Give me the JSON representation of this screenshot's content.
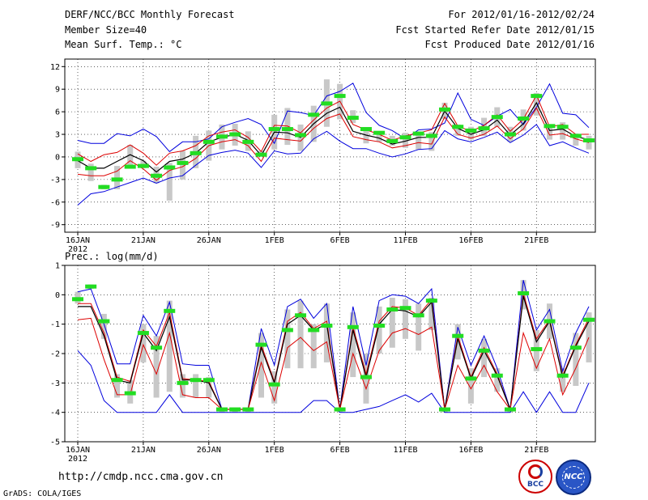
{
  "header": {
    "title": "DERF/NCC/BCC Monthly Forecast",
    "member_size": "Member Size=40",
    "variable": "Mean Surf. Temp.: °C",
    "period": "For 2012/01/16-2012/02/24",
    "started": "Fcst Started Refer Date 2012/01/15",
    "produced": "Fcst Produced Date 2012/01/16"
  },
  "footer": {
    "url": "http://cmdp.ncc.cma.gov.cn",
    "credit": "GrADS: COLA/IGES",
    "logo_left_text": "BCC",
    "logo_right_text": "NCC"
  },
  "colors": {
    "spread": "#0000dd",
    "quantile": "#dd0000",
    "mean": "#000000",
    "box": "#c8c8c8",
    "median": "#22dd22"
  },
  "chart_data": [
    {
      "type": "line",
      "title": "Mean Surf. Temp.: °C",
      "x_tick_labels": [
        "16JAN",
        "21JAN",
        "26JAN",
        "1FEB",
        "6FEB",
        "11FEB",
        "16FEB",
        "21FEB"
      ],
      "x_tick_days": [
        0,
        5,
        10,
        15,
        20,
        25,
        30,
        35
      ],
      "year_label": "2012",
      "ylim": [
        -10,
        13
      ],
      "yticks": [
        -9,
        -6,
        -3,
        0,
        3,
        6,
        9,
        12
      ],
      "ytick_labels": [
        "-9",
        "-6",
        "-3",
        "0",
        "3",
        "6",
        "9",
        "12"
      ],
      "series": [
        {
          "name": "max",
          "values": [
            2.2,
            1.8,
            1.8,
            3.1,
            2.8,
            3.7,
            2.7,
            0.7,
            2.0,
            2.0,
            2.4,
            4.0,
            4.6,
            5.1,
            4.3,
            1.8,
            6.1,
            5.9,
            5.5,
            8.1,
            8.7,
            9.8,
            5.9,
            4.2,
            3.5,
            2.4,
            3.6,
            3.7,
            4.5,
            8.5,
            5.0,
            4.2,
            5.4,
            6.3,
            4.3,
            6.6,
            9.7,
            5.8,
            5.6,
            3.9
          ]
        },
        {
          "name": "upper",
          "values": [
            0.4,
            -0.6,
            0.3,
            0.6,
            1.6,
            0.5,
            -1.1,
            0.5,
            0.8,
            1.5,
            2.8,
            3.3,
            3.6,
            2.6,
            0.7,
            4.2,
            4.1,
            3.2,
            4.9,
            6.5,
            7.4,
            4.3,
            3.6,
            3.0,
            2.2,
            2.8,
            3.2,
            3.6,
            7.1,
            4.1,
            3.4,
            4.2,
            5.6,
            3.4,
            5.0,
            8.2,
            4.0,
            4.3,
            3.0,
            3.0
          ]
        },
        {
          "name": "mean",
          "values": [
            -0.5,
            -1.5,
            -1.5,
            -0.6,
            0.3,
            -0.5,
            -2.0,
            -0.6,
            -0.3,
            0.5,
            2.0,
            2.6,
            3.0,
            2.2,
            0.2,
            3.3,
            3.2,
            2.6,
            4.4,
            5.8,
            6.6,
            3.4,
            2.9,
            2.5,
            1.7,
            2.1,
            2.6,
            2.6,
            6.1,
            3.8,
            3.0,
            3.6,
            4.9,
            2.9,
            4.4,
            7.2,
            3.5,
            3.7,
            2.7,
            2.3
          ]
        },
        {
          "name": "lower",
          "values": [
            -2.3,
            -2.5,
            -2.5,
            -1.9,
            -0.5,
            -1.6,
            -3.1,
            -1.8,
            -1.3,
            -0.2,
            1.5,
            2.0,
            2.3,
            1.5,
            -0.6,
            2.5,
            2.3,
            2.1,
            3.8,
            5.1,
            5.7,
            2.7,
            2.3,
            2.0,
            1.2,
            1.5,
            1.9,
            1.7,
            5.3,
            3.0,
            2.5,
            3.0,
            4.1,
            2.4,
            3.7,
            6.5,
            2.9,
            3.1,
            2.4,
            1.9
          ]
        },
        {
          "name": "min",
          "values": [
            -6.4,
            -4.9,
            -4.6,
            -4.0,
            -3.4,
            -2.8,
            -3.5,
            -2.8,
            -2.5,
            -1.1,
            0.2,
            0.6,
            0.9,
            0.5,
            -1.4,
            0.8,
            0.4,
            0.5,
            2.4,
            3.4,
            2.1,
            1.1,
            1.1,
            0.5,
            0.0,
            0.4,
            1.0,
            1.1,
            3.5,
            2.4,
            2.0,
            2.6,
            3.3,
            1.9,
            2.9,
            4.3,
            1.5,
            2.0,
            1.2,
            0.5
          ]
        }
      ],
      "box_low": [
        -1.5,
        -3.2,
        -4.3,
        -4.3,
        -1.5,
        -1.5,
        -3.5,
        -5.8,
        -3.0,
        -1.5,
        -0.5,
        1.0,
        1.5,
        0.8,
        0.2,
        1.0,
        1.6,
        0.8,
        2.0,
        4.0,
        5.0,
        4.5,
        1.8,
        2.0,
        1.5,
        1.2,
        1.0,
        0.8,
        5.0,
        2.8,
        2.3,
        2.8,
        4.0,
        2.0,
        3.5,
        5.5,
        2.3,
        2.3,
        1.5,
        1.0
      ],
      "box_high": [
        0.7,
        -0.9,
        -3.7,
        -1.2,
        1.6,
        -0.5,
        -1.3,
        -0.8,
        0.8,
        2.8,
        3.5,
        4.3,
        4.4,
        3.4,
        0.8,
        5.6,
        6.5,
        4.3,
        6.8,
        10.3,
        9.7,
        6.2,
        3.6,
        3.3,
        2.8,
        3.2,
        3.4,
        3.3,
        7.2,
        4.3,
        4.0,
        5.2,
        6.6,
        4.0,
        6.3,
        8.5,
        4.3,
        4.6,
        3.1,
        2.8
      ],
      "median": [
        -0.3,
        -1.5,
        -4.0,
        -3.0,
        -1.3,
        -1.2,
        -2.5,
        -1.4,
        -0.8,
        0.5,
        2.0,
        2.7,
        3.0,
        2.0,
        0.3,
        3.7,
        3.7,
        2.9,
        5.6,
        7.1,
        8.1,
        5.2,
        3.7,
        3.2,
        2.1,
        2.6,
        3.1,
        2.8,
        6.3,
        4.0,
        3.5,
        3.8,
        5.3,
        3.0,
        5.1,
        8.1,
        4.1,
        4.0,
        2.8,
        2.2
      ]
    },
    {
      "type": "line",
      "title": "Prec.: log(mm/d)",
      "x_tick_labels": [
        "16JAN",
        "21JAN",
        "26JAN",
        "1FEB",
        "6FEB",
        "11FEB",
        "16FEB",
        "21FEB"
      ],
      "x_tick_days": [
        0,
        5,
        10,
        15,
        20,
        25,
        30,
        35
      ],
      "year_label": "2012",
      "ylim": [
        -5,
        1
      ],
      "yticks": [
        -5,
        -4,
        -3,
        -2,
        -1,
        0,
        1
      ],
      "ytick_labels": [
        "-5",
        "-4",
        "-3",
        "-2",
        "-1",
        "0",
        "1"
      ],
      "series": [
        {
          "name": "max",
          "values": [
            0.1,
            0.2,
            -1.0,
            -2.35,
            -2.35,
            -0.7,
            -1.4,
            -0.25,
            -2.35,
            -2.4,
            -2.4,
            -3.9,
            -3.9,
            -3.9,
            -1.15,
            -2.4,
            -0.4,
            -0.15,
            -0.8,
            -0.3,
            -3.9,
            -0.4,
            -2.4,
            -0.2,
            0.0,
            -0.05,
            -0.3,
            0.2,
            -3.9,
            -1.1,
            -2.4,
            -1.4,
            -2.5,
            -3.9,
            0.5,
            -1.2,
            -0.5,
            -2.6,
            -1.3,
            -0.4
          ]
        },
        {
          "name": "upper",
          "values": [
            -0.3,
            -0.3,
            -1.3,
            -2.8,
            -2.95,
            -1.2,
            -1.75,
            -0.6,
            -2.85,
            -2.9,
            -2.95,
            -3.9,
            -3.9,
            -3.9,
            -1.7,
            -2.95,
            -0.9,
            -0.6,
            -1.15,
            -0.9,
            -3.9,
            -1.1,
            -2.7,
            -0.9,
            -0.4,
            -0.45,
            -0.7,
            -0.15,
            -3.9,
            -1.4,
            -2.8,
            -1.8,
            -2.7,
            -3.9,
            0.05,
            -1.5,
            -0.85,
            -2.75,
            -1.7,
            -0.8
          ]
        },
        {
          "name": "mean",
          "values": [
            -0.4,
            -0.4,
            -1.4,
            -2.9,
            -3.0,
            -1.3,
            -1.9,
            -0.75,
            -2.9,
            -2.9,
            -3.0,
            -3.9,
            -3.9,
            -3.9,
            -1.8,
            -3.0,
            -1.0,
            -0.7,
            -1.2,
            -1.0,
            -3.9,
            -1.2,
            -2.8,
            -1.0,
            -0.5,
            -0.55,
            -0.75,
            -0.25,
            -3.9,
            -1.5,
            -2.85,
            -1.9,
            -2.75,
            -3.9,
            -0.05,
            -1.6,
            -0.9,
            -2.8,
            -1.75,
            -0.9
          ]
        },
        {
          "name": "lower",
          "values": [
            -0.85,
            -0.8,
            -2.2,
            -3.4,
            -3.4,
            -1.7,
            -2.7,
            -1.3,
            -3.4,
            -3.5,
            -3.5,
            -3.9,
            -3.9,
            -3.9,
            -2.3,
            -3.6,
            -1.8,
            -1.45,
            -1.9,
            -1.6,
            -3.9,
            -2.0,
            -3.2,
            -1.9,
            -1.3,
            -1.15,
            -1.35,
            -1.1,
            -3.9,
            -2.4,
            -3.2,
            -2.4,
            -3.3,
            -3.9,
            -1.3,
            -2.5,
            -1.5,
            -3.4,
            -2.5,
            -1.45
          ]
        },
        {
          "name": "min",
          "values": [
            -1.9,
            -2.4,
            -3.6,
            -4.0,
            -4.0,
            -4.0,
            -4.0,
            -3.4,
            -4.0,
            -4.0,
            -4.0,
            -4.0,
            -4.0,
            -4.0,
            -4.0,
            -4.0,
            -4.0,
            -4.0,
            -3.6,
            -3.6,
            -4.0,
            -4.0,
            -3.9,
            -3.8,
            -3.6,
            -3.4,
            -3.65,
            -3.35,
            -4.0,
            -4.0,
            -4.0,
            -4.0,
            -4.0,
            -4.0,
            -3.3,
            -4.0,
            -3.3,
            -4.0,
            -4.0,
            -3.0
          ]
        }
      ],
      "box_low": [
        -0.3,
        0.2,
        -1.5,
        -3.5,
        -3.7,
        -2.3,
        -3.5,
        -3.3,
        -3.5,
        -3.5,
        -3.5,
        -4.0,
        -4.0,
        -4.0,
        -3.5,
        -3.7,
        -2.5,
        -2.5,
        -2.5,
        -2.3,
        -4.0,
        -2.8,
        -3.7,
        -2.0,
        -1.8,
        -1.5,
        -1.9,
        -1.2,
        -4.0,
        -2.2,
        -3.7,
        -2.8,
        -3.3,
        -4.0,
        -0.5,
        -2.6,
        -1.5,
        -3.3,
        -3.1,
        -2.3
      ],
      "box_high": [
        0.1,
        0.35,
        -0.65,
        -2.7,
        -2.9,
        -1.0,
        -1.4,
        -0.2,
        -2.7,
        -2.7,
        -2.8,
        -3.9,
        -3.9,
        -3.9,
        -1.3,
        -2.6,
        -0.5,
        -0.2,
        -1.0,
        -0.3,
        -3.9,
        -0.6,
        -2.0,
        -0.4,
        -0.1,
        -0.15,
        -0.3,
        -0.1,
        -3.9,
        -1.0,
        -2.5,
        -1.5,
        -2.5,
        -3.9,
        0.5,
        -1.2,
        -0.3,
        -2.5,
        -1.3,
        -0.6
      ],
      "median": [
        -0.15,
        0.28,
        -0.9,
        -2.9,
        -3.35,
        -1.3,
        -1.8,
        -0.55,
        -3.0,
        -2.9,
        -2.9,
        -3.9,
        -3.9,
        -3.9,
        -1.7,
        -3.05,
        -1.2,
        -0.7,
        -1.2,
        -1.05,
        -3.9,
        -1.1,
        -2.8,
        -1.05,
        -0.5,
        -0.45,
        -0.7,
        -0.2,
        -3.9,
        -1.4,
        -2.85,
        -1.9,
        -2.75,
        -3.9,
        0.05,
        -1.85,
        -0.9,
        -2.75,
        -1.8,
        -0.85
      ]
    }
  ]
}
